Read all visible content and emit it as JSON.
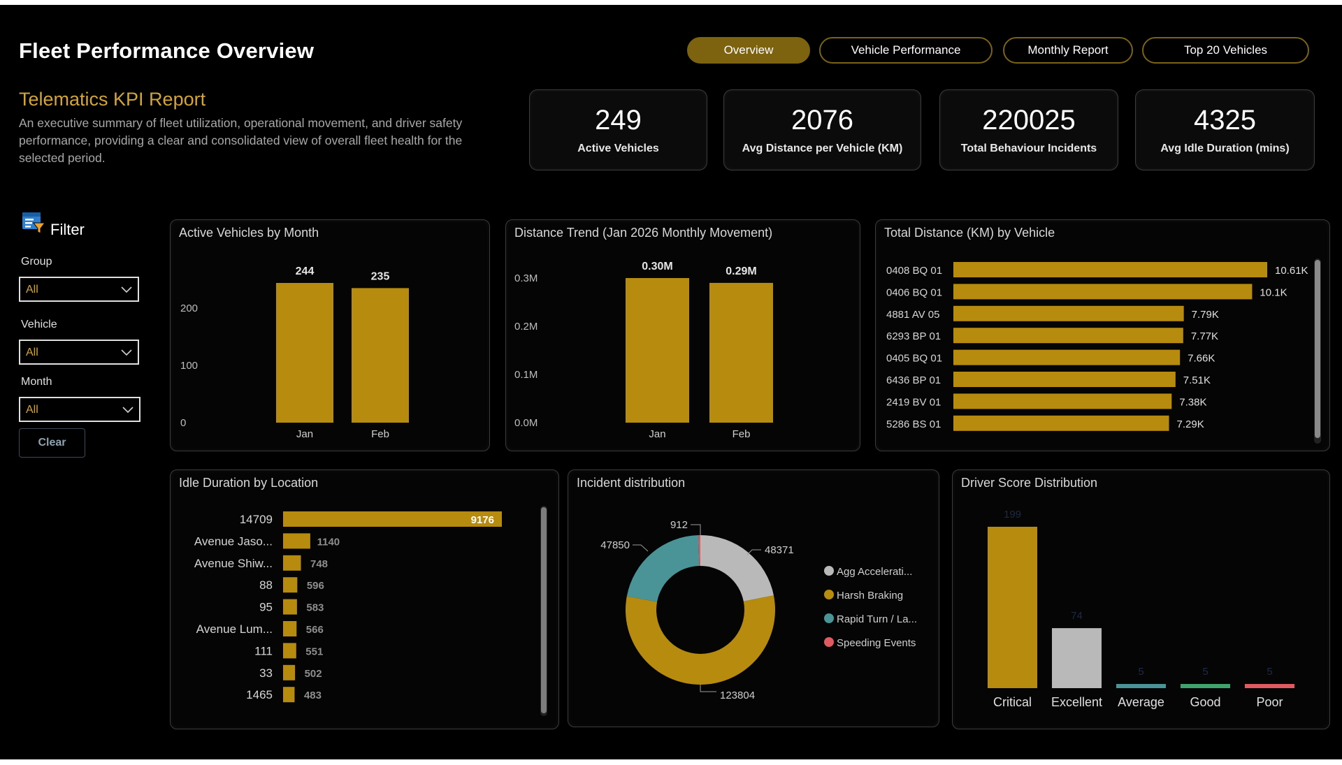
{
  "header": {
    "title": "Fleet Performance Overview",
    "tabs": [
      {
        "label": "Overview",
        "active": true
      },
      {
        "label": "Vehicle Performance",
        "active": false
      },
      {
        "label": "Monthly Report",
        "active": false
      },
      {
        "label": "Top 20 Vehicles",
        "active": false
      }
    ]
  },
  "intro": {
    "subtitle": "Telematics KPI Report",
    "description": "An executive summary of fleet utilization, operational movement, and driver safety performance, providing a clear and consolidated view of overall fleet health for the selected period."
  },
  "kpis": [
    {
      "value": "249",
      "label": "Active Vehicles"
    },
    {
      "value": "2076",
      "label": "Avg Distance per Vehicle (KM)"
    },
    {
      "value": "220025",
      "label": "Total Behaviour Incidents"
    },
    {
      "value": "4325",
      "label": "Avg Idle Duration (mins)"
    }
  ],
  "filter": {
    "title": "Filter",
    "fields": [
      {
        "label": "Group",
        "value": "All"
      },
      {
        "label": "Vehicle",
        "value": "All"
      },
      {
        "label": "Month",
        "value": "All"
      }
    ],
    "clear_label": "Clear"
  },
  "colors": {
    "gold": "#b78c0e",
    "gold_text": "#d4a437",
    "grey": "#b9b9b9",
    "teal": "#4a9396",
    "green": "#3fa36c",
    "red": "#e05a62"
  },
  "chart_data": [
    {
      "id": "active_by_month",
      "type": "bar",
      "title": "Active Vehicles by Month",
      "categories": [
        "Jan",
        "Feb"
      ],
      "values": [
        244,
        235
      ],
      "data_labels": [
        "244",
        "235"
      ],
      "y_ticks": [
        0,
        100,
        200
      ],
      "y_tick_labels": [
        "0",
        "100",
        "200"
      ],
      "ylim": [
        0,
        244
      ]
    },
    {
      "id": "distance_trend",
      "type": "bar",
      "title": "Distance Trend (Jan 2026 Monthly Movement)",
      "categories": [
        "Jan",
        "Feb"
      ],
      "values": [
        0.3,
        0.29
      ],
      "data_labels": [
        "0.30M",
        "0.29M"
      ],
      "y_ticks": [
        0,
        0.1,
        0.2,
        0.3
      ],
      "y_tick_labels": [
        "0.0M",
        "0.1M",
        "0.2M",
        "0.3M"
      ],
      "ylim": [
        0,
        0.3
      ]
    },
    {
      "id": "distance_by_vehicle",
      "type": "bar",
      "orientation": "horizontal",
      "title": "Total Distance (KM) by Vehicle",
      "categories": [
        "0408 BQ 01",
        "0406 BQ 01",
        "4881 AV 05",
        "6293 BP 01",
        "0405 BQ 01",
        "6436 BP 01",
        "2419 BV 01",
        "5286 BS 01"
      ],
      "values": [
        10610,
        10100,
        7790,
        7770,
        7660,
        7510,
        7380,
        7290
      ],
      "data_labels": [
        "10.61K",
        "10.1K",
        "7.79K",
        "7.77K",
        "7.66K",
        "7.51K",
        "7.38K",
        "7.29K"
      ],
      "xlim": [
        0,
        10610
      ]
    },
    {
      "id": "idle_by_location",
      "type": "bar",
      "orientation": "horizontal",
      "title": "Idle Duration by Location",
      "categories": [
        "14709",
        "Avenue Jaso...",
        "Avenue Shiw...",
        "88",
        "95",
        "Avenue Lum...",
        "111",
        "33",
        "1465"
      ],
      "values": [
        9176,
        1140,
        748,
        596,
        583,
        566,
        551,
        502,
        483
      ],
      "data_labels": [
        "9176",
        "1140",
        "748",
        "596",
        "583",
        "566",
        "551",
        "502",
        "483"
      ],
      "xlim": [
        0,
        9176
      ]
    },
    {
      "id": "incident_distribution",
      "type": "pie",
      "title": "Incident distribution",
      "slices": [
        {
          "label": "Agg Accelerati...",
          "value": 48371,
          "color": "#b9b9b9"
        },
        {
          "label": "Harsh Braking",
          "value": 123804,
          "color": "#b78c0e"
        },
        {
          "label": "Rapid Turn / La...",
          "value": 47850,
          "color": "#4a9396"
        },
        {
          "label": "Speeding Events",
          "value": 912,
          "color": "#e05a62"
        }
      ]
    },
    {
      "id": "driver_score",
      "type": "bar",
      "title": "Driver Score Distribution",
      "categories": [
        "Critical",
        "Excellent",
        "Average",
        "Good",
        "Poor"
      ],
      "values": [
        199,
        74,
        5,
        5,
        5
      ],
      "data_labels": [
        "199",
        "74",
        "5",
        "5",
        "5"
      ],
      "colors": [
        "#b78c0e",
        "#b9b9b9",
        "#4a9396",
        "#3fa36c",
        "#e05a62"
      ],
      "ylim": [
        0,
        199
      ]
    }
  ]
}
